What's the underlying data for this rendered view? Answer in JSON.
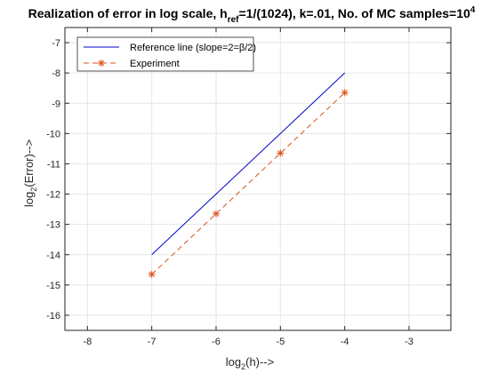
{
  "chart_data": {
    "type": "line",
    "title": {
      "prefix": "Realization of error in log scale, h",
      "sub": "ref",
      "middle": "=1/(1024), k=.01, No. of MC samples=10",
      "sup": "4"
    },
    "xlabel": {
      "pre": "log",
      "sub": "2",
      "post": "(h)-->"
    },
    "ylabel": {
      "pre": "log",
      "sub": "2",
      "post": "(Error)-->"
    },
    "xlim": [
      -8.35,
      -2.35
    ],
    "ylim": [
      -16.5,
      -6.5
    ],
    "xticks": [
      -8,
      -7,
      -6,
      -5,
      -4,
      -3
    ],
    "yticks": [
      -16,
      -15,
      -14,
      -13,
      -12,
      -11,
      -10,
      -9,
      -8,
      -7
    ],
    "grid": true,
    "legend_position": "top-left",
    "series": [
      {
        "name": "Reference line (slope=2=β/2)",
        "color": "#0000cc",
        "line_style": "solid",
        "marker": "none",
        "x": [
          -7,
          -4
        ],
        "y": [
          -14,
          -8
        ]
      },
      {
        "name": "Experiment",
        "color": "#d95319",
        "line_style": "dashed",
        "marker": "asterisk",
        "x": [
          -7,
          -6,
          -5,
          -4
        ],
        "y": [
          -14.65,
          -12.65,
          -10.65,
          -8.65
        ]
      }
    ]
  }
}
